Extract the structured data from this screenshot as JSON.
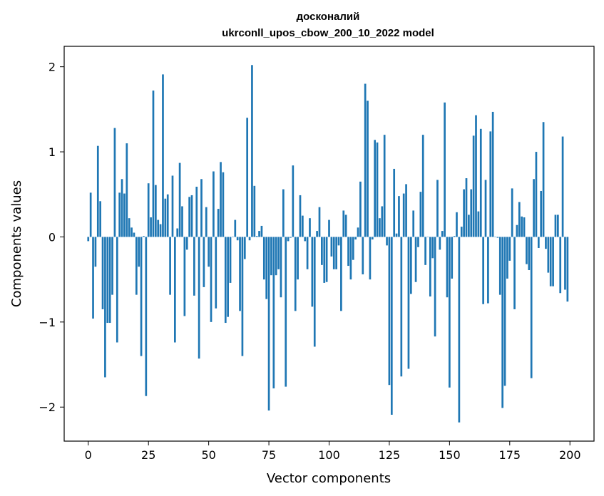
{
  "chart_data": {
    "type": "bar",
    "title": "досконалий\nukrconll_upos_cbow_200_10_2022 model",
    "title_lines": [
      "досконалий",
      "ukrconll_upos_cbow_200_10_2022 model"
    ],
    "xlabel": "Vector components",
    "ylabel": "Components values",
    "xlim": [
      -10,
      210
    ],
    "ylim": [
      -2.4,
      2.24
    ],
    "xticks": [
      0,
      25,
      50,
      75,
      100,
      125,
      150,
      175,
      200
    ],
    "yticks": [
      -2,
      -1,
      0,
      1,
      2
    ],
    "ytick_labels": [
      "−2",
      "−1",
      "0",
      "1",
      "2"
    ],
    "grid": false,
    "bar_color": "#1f77b4",
    "values": [
      -0.05,
      0.52,
      -0.96,
      -0.35,
      1.07,
      0.42,
      -0.85,
      -1.65,
      -1.01,
      -1.01,
      -0.68,
      1.28,
      -1.24,
      0.52,
      0.68,
      0.51,
      1.1,
      0.22,
      0.11,
      0.05,
      -0.68,
      -0.35,
      -1.4,
      0.01,
      -1.87,
      0.63,
      0.23,
      1.72,
      0.61,
      0.2,
      0.15,
      1.91,
      0.45,
      0.5,
      -0.68,
      0.72,
      -1.24,
      0.1,
      0.87,
      0.36,
      -0.93,
      -0.15,
      0.47,
      0.49,
      -0.69,
      0.59,
      -1.43,
      0.68,
      -0.59,
      0.35,
      -0.35,
      -1.0,
      0.77,
      -0.84,
      0.33,
      0.88,
      0.76,
      -1.01,
      -0.94,
      -0.54,
      0.0,
      0.2,
      -0.04,
      -0.87,
      -1.4,
      -0.26,
      1.4,
      -0.04,
      2.02,
      0.6,
      0.01,
      0.07,
      0.13,
      -0.5,
      -0.73,
      -2.04,
      -0.45,
      -1.78,
      -0.45,
      -0.38,
      -0.71,
      0.56,
      -1.76,
      -0.05,
      -0.01,
      0.84,
      -0.87,
      -0.5,
      0.49,
      0.25,
      -0.05,
      -0.38,
      0.22,
      -0.82,
      -1.29,
      0.07,
      0.35,
      -0.33,
      -0.54,
      -0.53,
      0.2,
      -0.23,
      -0.38,
      -0.38,
      -0.1,
      -0.87,
      0.31,
      0.26,
      -0.34,
      -0.5,
      -0.27,
      -0.03,
      0.11,
      0.65,
      -0.44,
      1.8,
      1.6,
      -0.5,
      -0.03,
      1.14,
      1.11,
      0.22,
      0.36,
      1.2,
      -0.1,
      -1.74,
      -2.09,
      0.8,
      0.04,
      0.48,
      -1.64,
      0.51,
      0.62,
      -1.55,
      -0.67,
      0.31,
      -0.53,
      -0.12,
      0.53,
      1.2,
      -0.33,
      0.0,
      -0.7,
      -0.25,
      -1.17,
      0.67,
      -0.15,
      0.07,
      1.58,
      -0.71,
      -1.77,
      -0.49,
      0.01,
      0.29,
      -2.18,
      0.12,
      0.56,
      0.69,
      0.26,
      0.56,
      1.19,
      1.43,
      0.3,
      1.27,
      -0.79,
      0.67,
      -0.78,
      1.24,
      1.47,
      0.0,
      -0.01,
      -0.68,
      -2.01,
      -1.75,
      -0.49,
      -0.28,
      0.57,
      -0.85,
      0.14,
      0.41,
      0.24,
      0.23,
      -0.32,
      -0.39,
      -1.66,
      0.68,
      1.0,
      -0.13,
      0.54,
      1.35,
      -0.14,
      -0.42,
      -0.58,
      -0.58,
      0.26,
      0.26,
      -0.66,
      1.18,
      -0.62,
      -0.76
    ]
  }
}
